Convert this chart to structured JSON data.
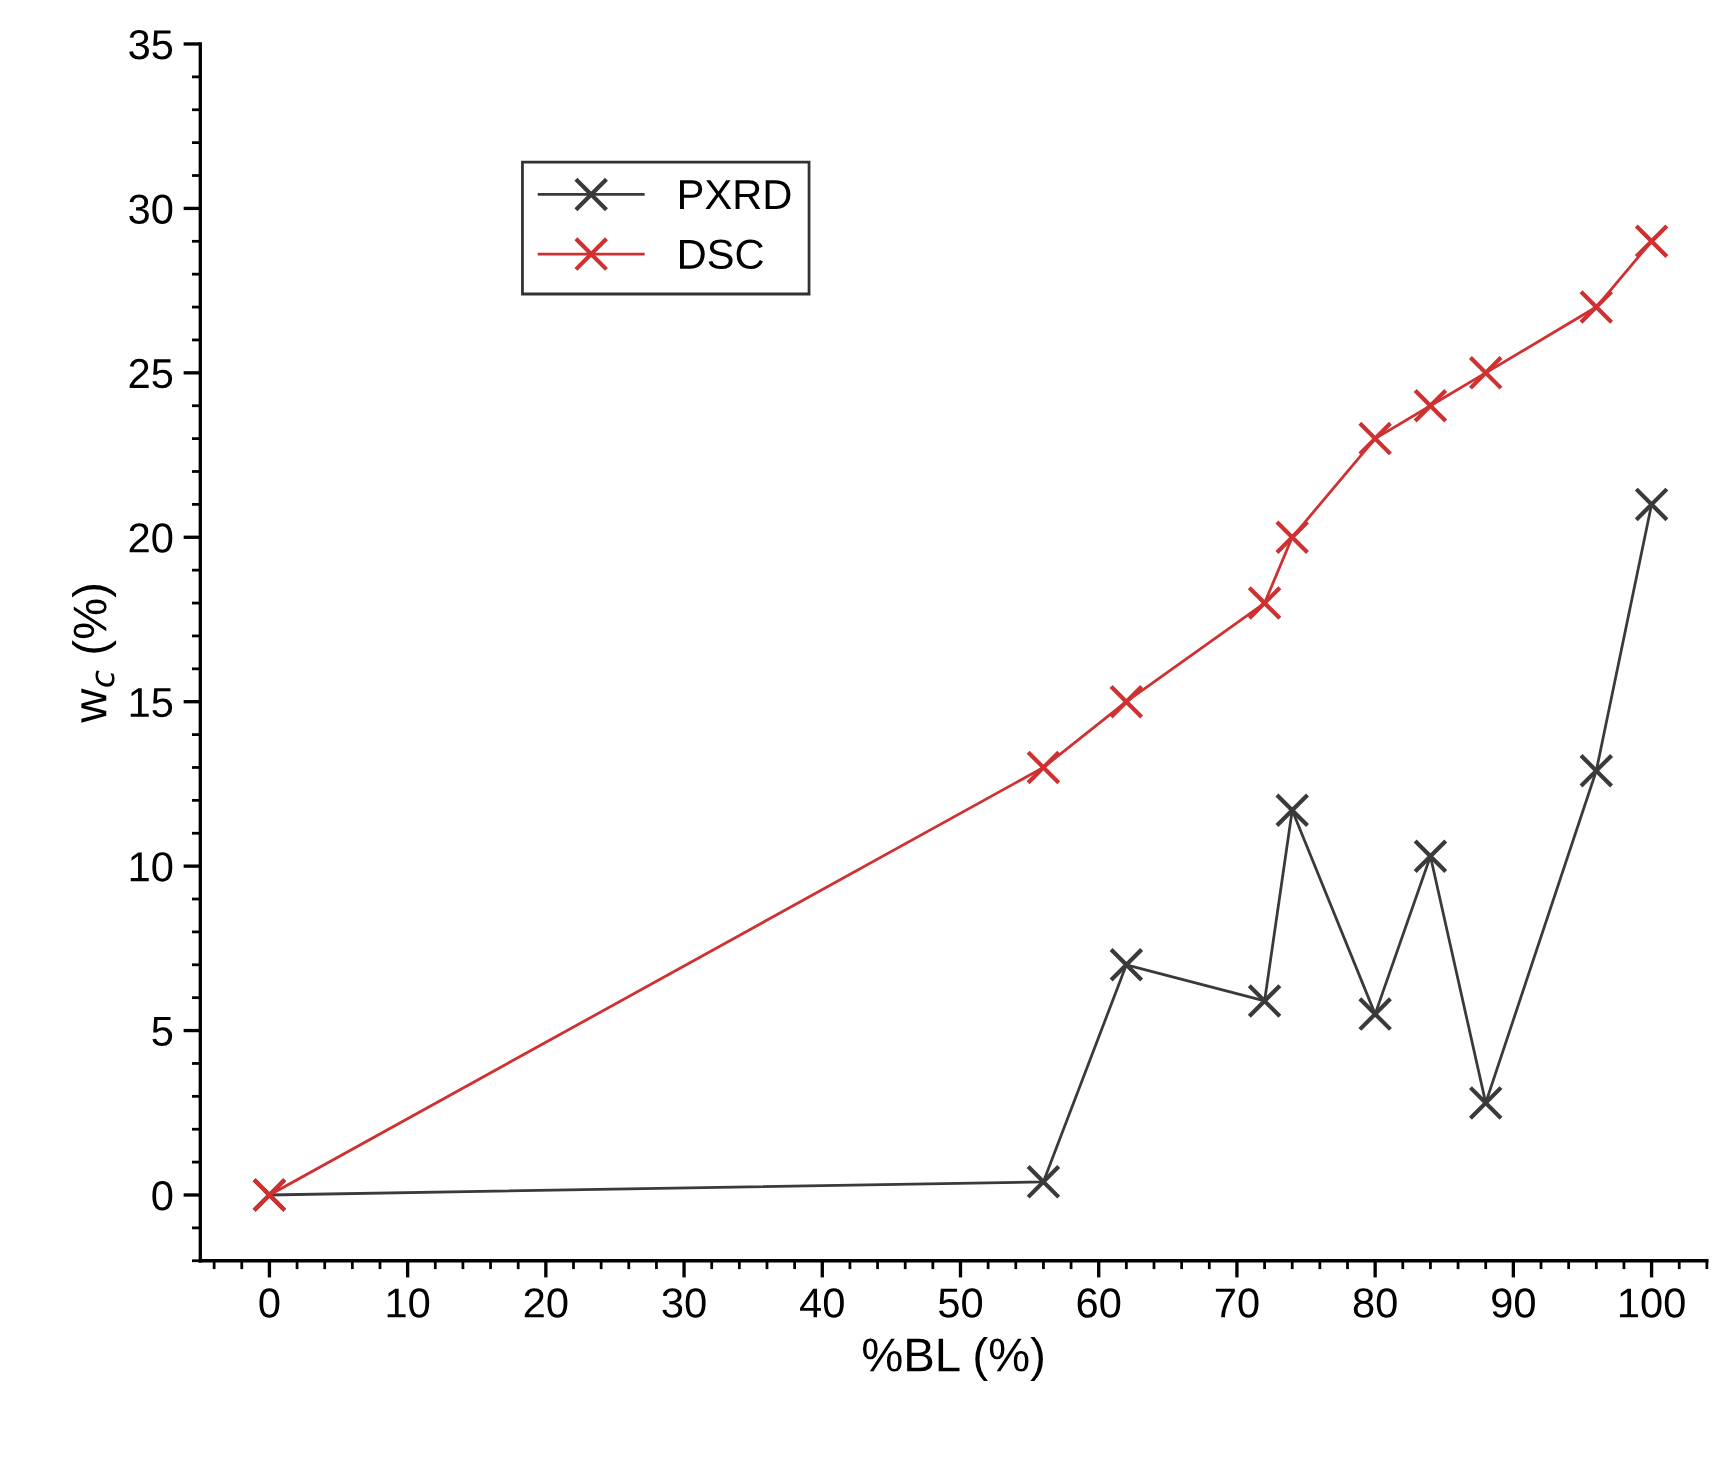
{
  "chart_data": {
    "type": "line",
    "xlabel": "%BL (%)",
    "ylabel": "w$_{c}$ (%)",
    "xlim": [
      -5,
      104
    ],
    "xticks": [
      0,
      10,
      20,
      30,
      40,
      50,
      60,
      70,
      80,
      90,
      100
    ],
    "ylim": [
      -2,
      35
    ],
    "yticks": [
      0,
      5,
      10,
      15,
      20,
      25,
      30,
      35
    ],
    "grid": false,
    "legend": "top left",
    "marker": "cross",
    "line_style": "solid",
    "series": [
      {
        "name": "PXRD",
        "color": "#3a3a3a",
        "x": [
          0,
          56,
          62,
          72,
          74,
          80,
          84,
          88,
          96,
          100
        ],
        "values": [
          0,
          0.4,
          7,
          5.9,
          11.7,
          5.5,
          10.3,
          2.8,
          12.9,
          21
        ]
      },
      {
        "name": "DSC",
        "color": "#d03030",
        "x": [
          0,
          56,
          62,
          72,
          74,
          80,
          84,
          88,
          96,
          100
        ],
        "values": [
          0,
          13,
          15,
          18,
          20,
          23,
          24,
          25,
          27,
          29
        ]
      }
    ]
  }
}
